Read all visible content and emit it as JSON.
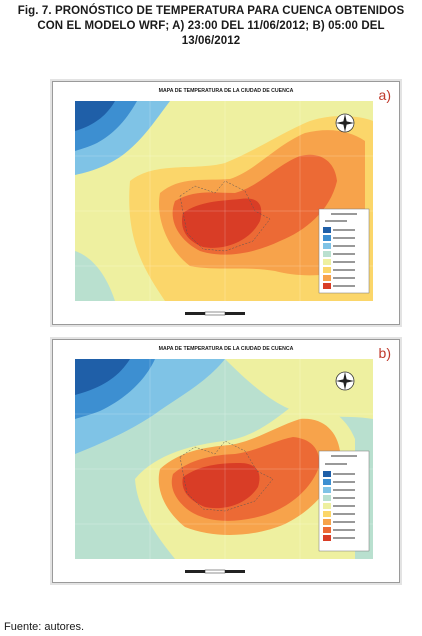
{
  "caption": {
    "line1": "Fig. 7. PRONÓSTICO DE TEMPERATURA PARA CUENCA OBTENIDOS",
    "line2": "CON EL MODELO WRF; A) 23:00 DEL 11/06/2012; B) 05:00 DEL",
    "line3": "13/06/2012"
  },
  "panels": [
    {
      "letter": "a)",
      "title": "MAPA DE TEMPERATURA DE LA CIUDAD DE CUENCA"
    },
    {
      "letter": "b)",
      "title": "MAPA DE TEMPERATURA DE LA CIUDAD DE CUENCA"
    }
  ],
  "palette": [
    "#1f5fa8",
    "#3d8fd1",
    "#7fc3e6",
    "#b9e0cf",
    "#eef0a0",
    "#fbd66a",
    "#f7a34b",
    "#ec6a35",
    "#d93d26"
  ],
  "source": "Fuente: autores."
}
